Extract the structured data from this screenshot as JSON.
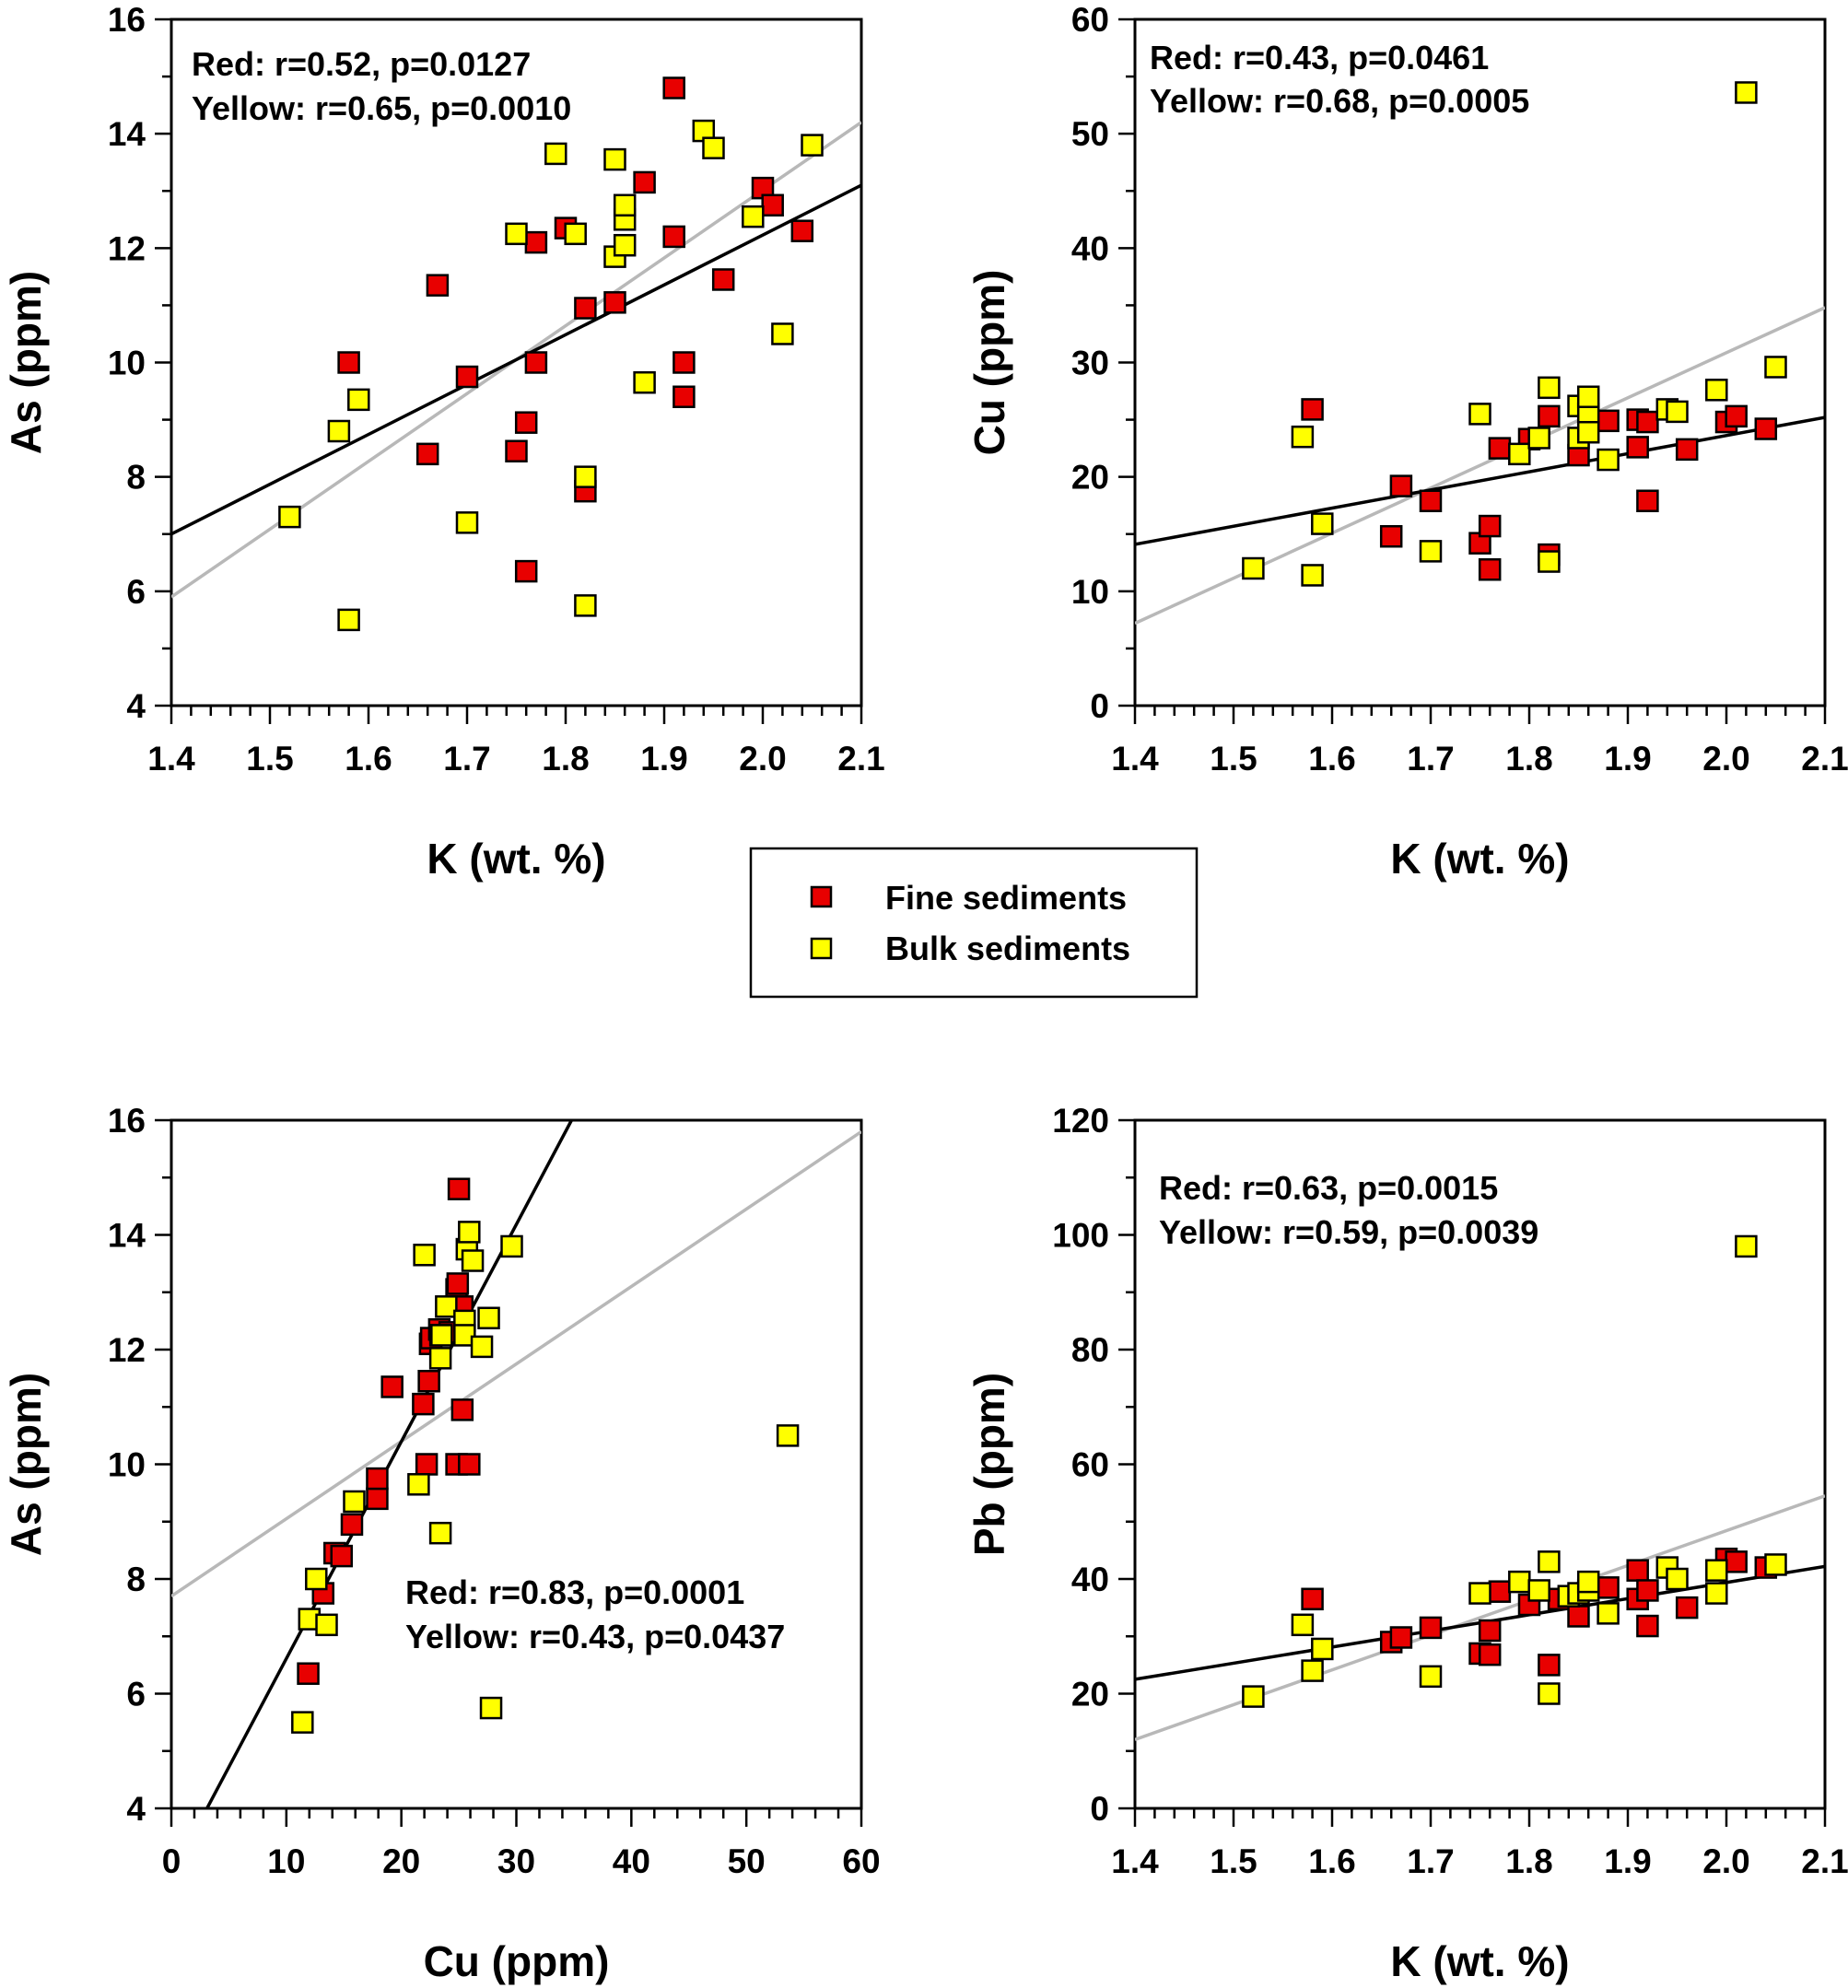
{
  "chart_data": [
    {
      "type": "scatter",
      "id": "as-vs-k",
      "xlabel": "K (wt. %)",
      "ylabel": "As (ppm)",
      "xlim": [
        1.4,
        2.1
      ],
      "ylim": [
        4,
        16
      ],
      "xticks": [
        "1.4",
        "1.5",
        "1.6",
        "1.7",
        "1.8",
        "1.9",
        "2.0",
        "2.1"
      ],
      "yticks": [
        "4",
        "6",
        "8",
        "10",
        "12",
        "14",
        "16"
      ],
      "annotations": [
        "Red: r=0.52, p=0.0127",
        "Yellow: r=0.65, p=0.0010"
      ],
      "annotation_position": "top-left",
      "series": [
        {
          "name": "Fine sediments",
          "color": "#e80000",
          "points": [
            [
              1.58,
              10.0
            ],
            [
              1.67,
              11.35
            ],
            [
              1.7,
              9.75
            ],
            [
              1.66,
              8.4
            ],
            [
              1.75,
              8.45
            ],
            [
              1.76,
              8.95
            ],
            [
              1.77,
              10.0
            ],
            [
              1.76,
              6.35
            ],
            [
              1.77,
              12.1
            ],
            [
              1.8,
              12.35
            ],
            [
              1.82,
              7.75
            ],
            [
              1.82,
              10.95
            ],
            [
              1.85,
              11.05
            ],
            [
              1.88,
              13.15
            ],
            [
              1.91,
              14.8
            ],
            [
              1.91,
              12.2
            ],
            [
              1.92,
              10.0
            ],
            [
              1.92,
              9.4
            ],
            [
              1.96,
              11.45
            ],
            [
              2.0,
              13.05
            ],
            [
              2.01,
              12.75
            ],
            [
              2.04,
              12.3
            ]
          ],
          "trend": [
            [
              1.4,
              7.0
            ],
            [
              2.1,
              13.1
            ]
          ]
        },
        {
          "name": "Bulk sediments",
          "color": "#ffff00",
          "points": [
            [
              1.52,
              7.3
            ],
            [
              1.57,
              8.8
            ],
            [
              1.58,
              5.5
            ],
            [
              1.59,
              9.35
            ],
            [
              1.7,
              7.2
            ],
            [
              1.75,
              12.25
            ],
            [
              1.79,
              13.65
            ],
            [
              1.81,
              12.25
            ],
            [
              1.82,
              8.0
            ],
            [
              1.82,
              5.75
            ],
            [
              1.85,
              11.85
            ],
            [
              1.85,
              13.55
            ],
            [
              1.86,
              12.5
            ],
            [
              1.86,
              12.75
            ],
            [
              1.86,
              12.05
            ],
            [
              1.88,
              9.65
            ],
            [
              1.94,
              14.05
            ],
            [
              1.95,
              13.75
            ],
            [
              1.99,
              12.55
            ],
            [
              2.02,
              10.5
            ],
            [
              2.05,
              13.8
            ]
          ],
          "trend": [
            [
              1.4,
              5.9
            ],
            [
              2.1,
              14.2
            ]
          ]
        }
      ]
    },
    {
      "type": "scatter",
      "id": "cu-vs-k",
      "xlabel": "K (wt. %)",
      "ylabel": "Cu (ppm)",
      "xlim": [
        1.4,
        2.1
      ],
      "ylim": [
        0,
        60
      ],
      "xticks": [
        "1.4",
        "1.5",
        "1.6",
        "1.7",
        "1.8",
        "1.9",
        "2.0",
        "2.1"
      ],
      "yticks": [
        "0",
        "10",
        "20",
        "30",
        "40",
        "50",
        "60"
      ],
      "annotations": [
        "Red: r=0.43, p=0.0461",
        "Yellow: r=0.68, p=0.0005"
      ],
      "annotation_position": "top-left",
      "series": [
        {
          "name": "Fine sediments",
          "color": "#e80000",
          "points": [
            [
              1.58,
              25.9
            ],
            [
              1.66,
              14.8
            ],
            [
              1.67,
              19.2
            ],
            [
              1.7,
              17.9
            ],
            [
              1.75,
              14.2
            ],
            [
              1.76,
              11.9
            ],
            [
              1.76,
              15.7
            ],
            [
              1.77,
              22.5
            ],
            [
              1.8,
              23.3
            ],
            [
              1.82,
              13.2
            ],
            [
              1.82,
              25.3
            ],
            [
              1.85,
              21.9
            ],
            [
              1.88,
              24.9
            ],
            [
              1.91,
              22.6
            ],
            [
              1.91,
              25.0
            ],
            [
              1.92,
              17.9
            ],
            [
              1.92,
              24.8
            ],
            [
              1.96,
              22.4
            ],
            [
              2.0,
              24.8
            ],
            [
              2.01,
              25.3
            ],
            [
              2.04,
              24.2
            ]
          ],
          "trend": [
            [
              1.4,
              14.1
            ],
            [
              2.1,
              25.2
            ]
          ]
        },
        {
          "name": "Bulk sediments",
          "color": "#ffff00",
          "points": [
            [
              1.52,
              12.0
            ],
            [
              1.57,
              23.5
            ],
            [
              1.58,
              11.4
            ],
            [
              1.59,
              15.9
            ],
            [
              1.7,
              13.5
            ],
            [
              1.75,
              25.5
            ],
            [
              1.79,
              22.0
            ],
            [
              1.81,
              23.4
            ],
            [
              1.82,
              27.8
            ],
            [
              1.82,
              12.6
            ],
            [
              1.85,
              23.4
            ],
            [
              1.85,
              26.2
            ],
            [
              1.86,
              25.5
            ],
            [
              1.86,
              23.9
            ],
            [
              1.86,
              27.0
            ],
            [
              1.88,
              21.5
            ],
            [
              1.94,
              25.9
            ],
            [
              1.95,
              25.7
            ],
            [
              1.99,
              27.6
            ],
            [
              2.02,
              53.6
            ],
            [
              2.05,
              29.6
            ]
          ],
          "trend": [
            [
              1.4,
              7.2
            ],
            [
              2.1,
              34.8
            ]
          ]
        }
      ]
    },
    {
      "type": "scatter",
      "id": "as-vs-cu",
      "xlabel": "Cu (ppm)",
      "ylabel": "As (ppm)",
      "xlim": [
        0,
        60
      ],
      "ylim": [
        4,
        16
      ],
      "xticks": [
        "0",
        "10",
        "20",
        "30",
        "40",
        "50",
        "60"
      ],
      "yticks": [
        "4",
        "6",
        "8",
        "10",
        "12",
        "14",
        "16"
      ],
      "annotations": [
        "Red: r=0.83, p=0.0001",
        "Yellow: r=0.43, p=0.0437"
      ],
      "annotation_position": "lower-right",
      "series": [
        {
          "name": "Fine sediments",
          "color": "#e80000",
          "points": [
            [
              11.9,
              6.35
            ],
            [
              13.2,
              7.75
            ],
            [
              14.2,
              8.45
            ],
            [
              14.8,
              8.4
            ],
            [
              15.7,
              8.95
            ],
            [
              17.9,
              9.4
            ],
            [
              17.9,
              9.75
            ],
            [
              19.2,
              11.35
            ],
            [
              21.9,
              11.05
            ],
            [
              22.4,
              11.45
            ],
            [
              22.5,
              12.1
            ],
            [
              22.6,
              12.2
            ],
            [
              23.3,
              12.35
            ],
            [
              24.2,
              12.3
            ],
            [
              24.8,
              13.05
            ],
            [
              24.8,
              10.0
            ],
            [
              24.9,
              13.15
            ],
            [
              25.0,
              14.8
            ],
            [
              25.3,
              10.95
            ],
            [
              25.3,
              12.75
            ],
            [
              25.9,
              10.0
            ],
            [
              22.2,
              10.0
            ]
          ],
          "trend": [
            [
              3.1,
              4.0
            ],
            [
              34.8,
              16.0
            ]
          ]
        },
        {
          "name": "Bulk sediments",
          "color": "#ffff00",
          "points": [
            [
              11.4,
              5.5
            ],
            [
              12.0,
              7.3
            ],
            [
              12.6,
              8.0
            ],
            [
              13.5,
              7.2
            ],
            [
              15.9,
              9.35
            ],
            [
              21.5,
              9.65
            ],
            [
              22.0,
              13.65
            ],
            [
              23.4,
              12.25
            ],
            [
              23.4,
              8.8
            ],
            [
              23.4,
              11.85
            ],
            [
              23.5,
              12.25
            ],
            [
              23.9,
              12.75
            ],
            [
              25.5,
              12.5
            ],
            [
              25.5,
              12.25
            ],
            [
              25.7,
              13.75
            ],
            [
              25.9,
              14.05
            ],
            [
              26.2,
              13.55
            ],
            [
              27.0,
              12.05
            ],
            [
              27.6,
              12.55
            ],
            [
              27.8,
              5.75
            ],
            [
              29.6,
              13.8
            ],
            [
              53.6,
              10.5
            ]
          ],
          "trend": [
            [
              0,
              7.7
            ],
            [
              60,
              15.8
            ]
          ]
        }
      ]
    },
    {
      "type": "scatter",
      "id": "pb-vs-k",
      "xlabel": "K (wt. %)",
      "ylabel": "Pb (ppm)",
      "xlim": [
        1.4,
        2.1
      ],
      "ylim": [
        0,
        120
      ],
      "xticks": [
        "1.4",
        "1.5",
        "1.6",
        "1.7",
        "1.8",
        "1.9",
        "2.0",
        "2.1"
      ],
      "yticks": [
        "0",
        "20",
        "40",
        "60",
        "80",
        "100",
        "120"
      ],
      "annotations": [
        "Red: r=0.63, p=0.0015",
        "Yellow: r=0.59, p=0.0039"
      ],
      "annotation_position": "top-left",
      "series": [
        {
          "name": "Fine sediments",
          "color": "#e80000",
          "points": [
            [
              1.58,
              36.5
            ],
            [
              1.66,
              29.0
            ],
            [
              1.67,
              29.8
            ],
            [
              1.7,
              31.5
            ],
            [
              1.75,
              27.0
            ],
            [
              1.76,
              26.8
            ],
            [
              1.76,
              31.0
            ],
            [
              1.77,
              37.8
            ],
            [
              1.8,
              35.5
            ],
            [
              1.82,
              25.0
            ],
            [
              1.83,
              36.5
            ],
            [
              1.85,
              33.5
            ],
            [
              1.88,
              38.5
            ],
            [
              1.91,
              36.5
            ],
            [
              1.91,
              41.5
            ],
            [
              1.92,
              31.8
            ],
            [
              1.92,
              38.0
            ],
            [
              1.96,
              35.0
            ],
            [
              2.0,
              43.5
            ],
            [
              2.01,
              43.0
            ],
            [
              2.04,
              42.0
            ]
          ],
          "trend": [
            [
              1.4,
              22.5
            ],
            [
              2.1,
              42.2
            ]
          ]
        },
        {
          "name": "Bulk sediments",
          "color": "#ffff00",
          "points": [
            [
              1.52,
              19.5
            ],
            [
              1.57,
              32.0
            ],
            [
              1.58,
              24.0
            ],
            [
              1.59,
              27.8
            ],
            [
              1.7,
              23.0
            ],
            [
              1.75,
              37.5
            ],
            [
              1.79,
              39.5
            ],
            [
              1.81,
              38.0
            ],
            [
              1.82,
              43.0
            ],
            [
              1.82,
              20.0
            ],
            [
              1.84,
              37.0
            ],
            [
              1.85,
              37.5
            ],
            [
              1.86,
              38.0
            ],
            [
              1.86,
              39.5
            ],
            [
              1.88,
              34.0
            ],
            [
              1.94,
              42.0
            ],
            [
              1.95,
              40.0
            ],
            [
              1.99,
              41.5
            ],
            [
              1.99,
              37.5
            ],
            [
              2.02,
              98.0
            ],
            [
              2.05,
              42.5
            ]
          ],
          "trend": [
            [
              1.4,
              12.0
            ],
            [
              2.1,
              54.5
            ]
          ]
        }
      ]
    }
  ],
  "legend": {
    "items": [
      {
        "label": "Fine sediments",
        "color": "#e80000"
      },
      {
        "label": "Bulk sediments",
        "color": "#ffff00"
      }
    ]
  },
  "style": {
    "red_trend_color": "#000000",
    "yellow_trend_color": "#b8b8b8",
    "marker_stroke": "#000000"
  }
}
